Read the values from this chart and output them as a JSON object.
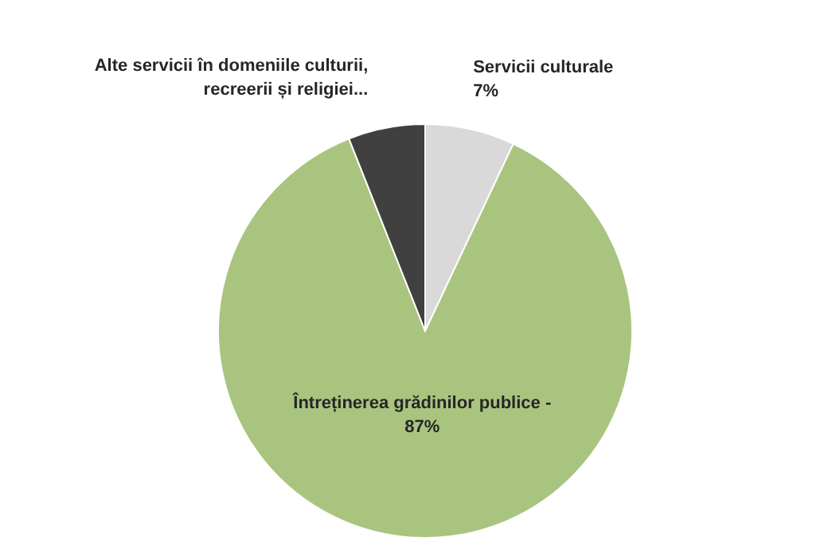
{
  "chart_data": {
    "type": "pie",
    "categories": [
      "Servicii culturale",
      "Întreținerea grădinilor publice -",
      "Alte servicii în domeniile culturii, recreerii și religiei..."
    ],
    "values": [
      7,
      87,
      6
    ],
    "value_labels": [
      "7%",
      "87%",
      null
    ],
    "colors": [
      "#d9d9d9",
      "#a9c47f",
      "#404040"
    ],
    "legend": false
  }
}
